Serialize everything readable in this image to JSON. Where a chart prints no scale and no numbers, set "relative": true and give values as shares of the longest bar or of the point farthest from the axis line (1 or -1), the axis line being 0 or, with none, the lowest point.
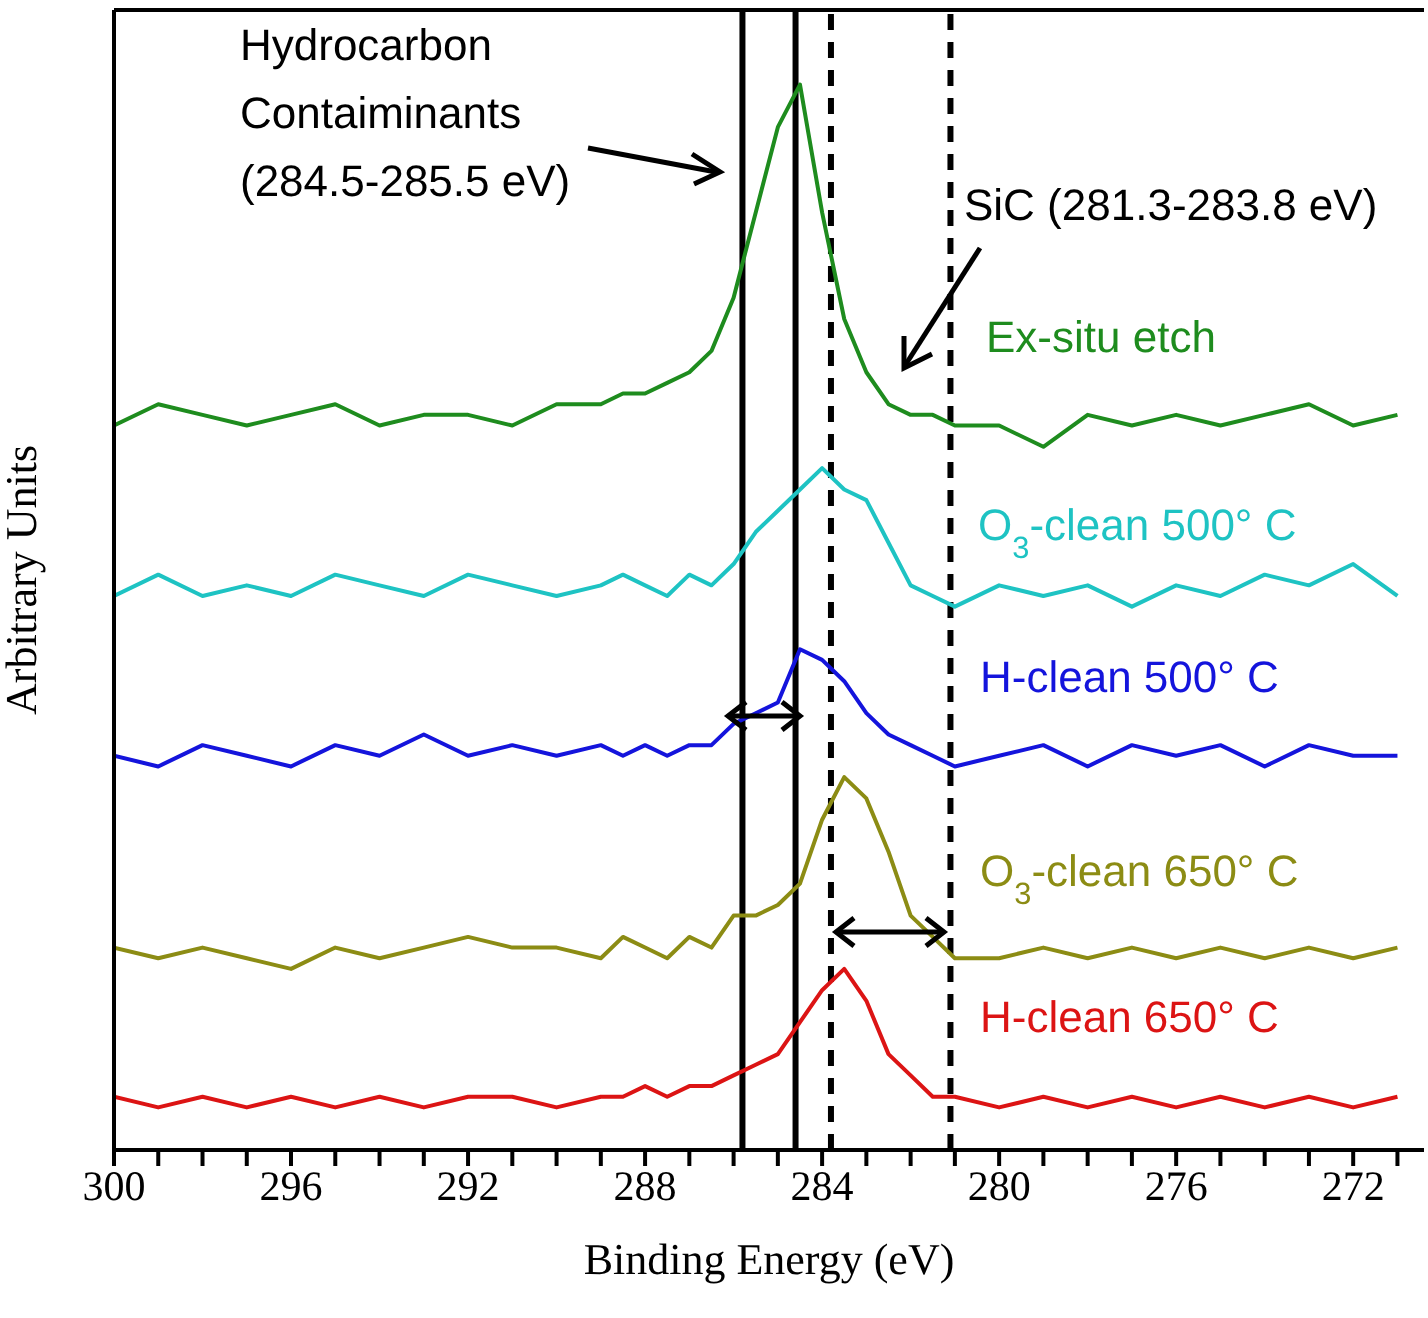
{
  "chart_data": {
    "type": "line",
    "relative": true,
    "xlabel": "Binding Energy (eV)",
    "ylabel": "Arbitrary Units",
    "xlim": [
      300,
      270.4
    ],
    "xticks": [
      300,
      {
        "value": 299,
        "label": null
      },
      {
        "value": 298,
        "label": null
      },
      {
        "value": 297,
        "label": null
      },
      296,
      {
        "value": 295,
        "label": null
      },
      {
        "value": 294,
        "label": null
      },
      {
        "value": 293,
        "label": null
      },
      292,
      {
        "value": 291,
        "label": null
      },
      {
        "value": 290,
        "label": null
      },
      {
        "value": 289,
        "label": null
      },
      288,
      {
        "value": 287,
        "label": null
      },
      {
        "value": 286,
        "label": null
      },
      {
        "value": 285,
        "label": null
      },
      284,
      {
        "value": 283,
        "label": null
      },
      {
        "value": 282,
        "label": null
      },
      {
        "value": 281,
        "label": null
      },
      280,
      {
        "value": 279,
        "label": null
      },
      {
        "value": 278,
        "label": null
      },
      {
        "value": 277,
        "label": null
      },
      276,
      {
        "value": 275,
        "label": null
      },
      {
        "value": 274,
        "label": null
      },
      {
        "value": 273,
        "label": null
      },
      272,
      {
        "value": 271,
        "label": null
      }
    ],
    "x": [
      300,
      299,
      298,
      297,
      296,
      295,
      294,
      293,
      292,
      291,
      290,
      289,
      288.5,
      288,
      287.5,
      287,
      286.5,
      286,
      285.5,
      285,
      284.5,
      284,
      283.5,
      283,
      282.5,
      282,
      281.5,
      281,
      280,
      279,
      278,
      277,
      276,
      275,
      274,
      273,
      272,
      271
    ],
    "marker": "none",
    "line_style": "solid",
    "series": [
      {
        "name": "Ex-situ etch",
        "color": "#1e8c1e",
        "values": [
          0.68,
          0.7,
          0.69,
          0.68,
          0.69,
          0.7,
          0.68,
          0.69,
          0.69,
          0.68,
          0.7,
          0.7,
          0.71,
          0.71,
          0.72,
          0.73,
          0.75,
          0.8,
          0.88,
          0.96,
          1.0,
          0.88,
          0.78,
          0.73,
          0.7,
          0.69,
          0.69,
          0.68,
          0.68,
          0.66,
          0.69,
          0.68,
          0.69,
          0.68,
          0.69,
          0.7,
          0.68,
          0.69
        ]
      },
      {
        "name": "O$_{3}$-clean 500° C",
        "color": "#1ec3c3",
        "values": [
          0.52,
          0.54,
          0.52,
          0.53,
          0.52,
          0.54,
          0.53,
          0.52,
          0.54,
          0.53,
          0.52,
          0.53,
          0.54,
          0.53,
          0.52,
          0.54,
          0.53,
          0.55,
          0.58,
          0.6,
          0.62,
          0.64,
          0.62,
          0.61,
          0.57,
          0.53,
          0.52,
          0.51,
          0.53,
          0.52,
          0.53,
          0.51,
          0.53,
          0.52,
          0.54,
          0.53,
          0.55,
          0.52
        ]
      },
      {
        "name": "H-clean 500° C",
        "color": "#1414dc",
        "values": [
          0.37,
          0.36,
          0.38,
          0.37,
          0.36,
          0.38,
          0.37,
          0.39,
          0.37,
          0.38,
          0.37,
          0.38,
          0.37,
          0.38,
          0.37,
          0.38,
          0.38,
          0.4,
          0.41,
          0.42,
          0.47,
          0.46,
          0.44,
          0.41,
          0.39,
          0.38,
          0.37,
          0.36,
          0.37,
          0.38,
          0.36,
          0.38,
          0.37,
          0.38,
          0.36,
          0.38,
          0.37,
          0.37
        ]
      },
      {
        "name": "O$_{3}$-clean 650° C",
        "color": "#8c8c14",
        "values": [
          0.19,
          0.18,
          0.19,
          0.18,
          0.17,
          0.19,
          0.18,
          0.19,
          0.2,
          0.19,
          0.19,
          0.18,
          0.2,
          0.19,
          0.18,
          0.2,
          0.19,
          0.22,
          0.22,
          0.23,
          0.25,
          0.31,
          0.35,
          0.33,
          0.28,
          0.22,
          0.2,
          0.18,
          0.18,
          0.19,
          0.18,
          0.19,
          0.18,
          0.19,
          0.18,
          0.19,
          0.18,
          0.19
        ]
      },
      {
        "name": "H-clean 650° C",
        "color": "#dc1414",
        "values": [
          0.05,
          0.04,
          0.05,
          0.04,
          0.05,
          0.04,
          0.05,
          0.04,
          0.05,
          0.05,
          0.04,
          0.05,
          0.05,
          0.06,
          0.05,
          0.06,
          0.06,
          0.07,
          0.08,
          0.09,
          0.12,
          0.15,
          0.17,
          0.14,
          0.09,
          0.07,
          0.05,
          0.05,
          0.04,
          0.05,
          0.04,
          0.05,
          0.04,
          0.05,
          0.04,
          0.05,
          0.04,
          0.05
        ]
      }
    ],
    "ref_lines": [
      {
        "axis": "x",
        "value": 285.8,
        "color": "#000000",
        "line_style": "solid"
      },
      {
        "axis": "x",
        "value": 284.6,
        "color": "#000000",
        "line_style": "solid"
      },
      {
        "axis": "x",
        "value": 283.8,
        "color": "#000000",
        "line_style": "dashed"
      },
      {
        "axis": "x",
        "value": 281.1,
        "color": "#000000",
        "line_style": "dashed"
      }
    ],
    "annotations": [
      "Hydrocarbon\nContaiminants\n(284.5-285.5 eV)",
      "SiC  (281.3-283.8 eV)"
    ]
  }
}
